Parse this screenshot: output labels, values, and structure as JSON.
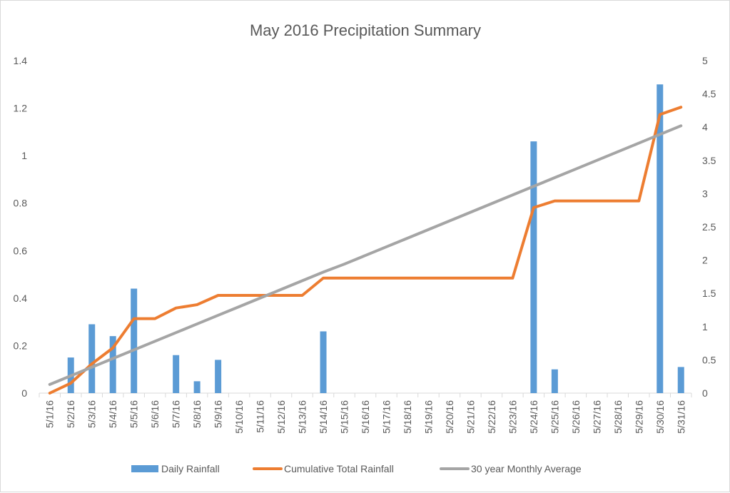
{
  "chart_data": {
    "type": "bar+line",
    "title": "May 2016 Precipitation Summary",
    "categories": [
      "5/1/16",
      "5/2/16",
      "5/3/16",
      "5/4/16",
      "5/5/16",
      "5/6/16",
      "5/7/16",
      "5/8/16",
      "5/9/16",
      "5/10/16",
      "5/11/16",
      "5/12/16",
      "5/13/16",
      "5/14/16",
      "5/15/16",
      "5/16/16",
      "5/17/16",
      "5/18/16",
      "5/19/16",
      "5/20/16",
      "5/21/16",
      "5/22/16",
      "5/23/16",
      "5/24/16",
      "5/25/16",
      "5/26/16",
      "5/27/16",
      "5/28/16",
      "5/29/16",
      "5/30/16",
      "5/31/16"
    ],
    "y_left": {
      "min": 0,
      "max": 1.4,
      "ticks": [
        "0",
        "0.2",
        "0.4",
        "0.6",
        "0.8",
        "1",
        "1.2",
        "1.4"
      ]
    },
    "y_right": {
      "min": 0,
      "max": 5,
      "ticks": [
        "0",
        "0.5",
        "1",
        "1.5",
        "2",
        "2.5",
        "3",
        "3.5",
        "4",
        "4.5",
        "5"
      ]
    },
    "series": [
      {
        "name": "Daily Rainfall",
        "kind": "bar",
        "axis": "left",
        "color": "#5b9bd5",
        "values": [
          0,
          0.15,
          0.29,
          0.24,
          0.44,
          0,
          0.16,
          0.05,
          0.14,
          0,
          0,
          0,
          0,
          0.26,
          0,
          0,
          0,
          0,
          0,
          0,
          0,
          0,
          0,
          1.06,
          0.1,
          0,
          0,
          0,
          0,
          1.3,
          0.11
        ]
      },
      {
        "name": "Cumulative Total Rainfall",
        "kind": "line",
        "axis": "right",
        "color": "#ed7d31",
        "values": [
          0,
          0.15,
          0.44,
          0.68,
          1.12,
          1.12,
          1.28,
          1.33,
          1.47,
          1.47,
          1.47,
          1.47,
          1.47,
          1.73,
          1.73,
          1.73,
          1.73,
          1.73,
          1.73,
          1.73,
          1.73,
          1.73,
          1.73,
          2.79,
          2.89,
          2.89,
          2.89,
          2.89,
          2.89,
          4.19,
          4.3
        ]
      },
      {
        "name": "30 year Monthly Average",
        "kind": "line",
        "axis": "right",
        "color": "#a5a5a5",
        "values": [
          0.13,
          0.26,
          0.39,
          0.52,
          0.65,
          0.78,
          0.91,
          1.04,
          1.17,
          1.3,
          1.43,
          1.56,
          1.69,
          1.82,
          1.94,
          2.07,
          2.2,
          2.33,
          2.46,
          2.59,
          2.72,
          2.85,
          2.98,
          3.11,
          3.24,
          3.37,
          3.5,
          3.63,
          3.76,
          3.89,
          4.02
        ]
      }
    ],
    "legend_position": "bottom"
  }
}
